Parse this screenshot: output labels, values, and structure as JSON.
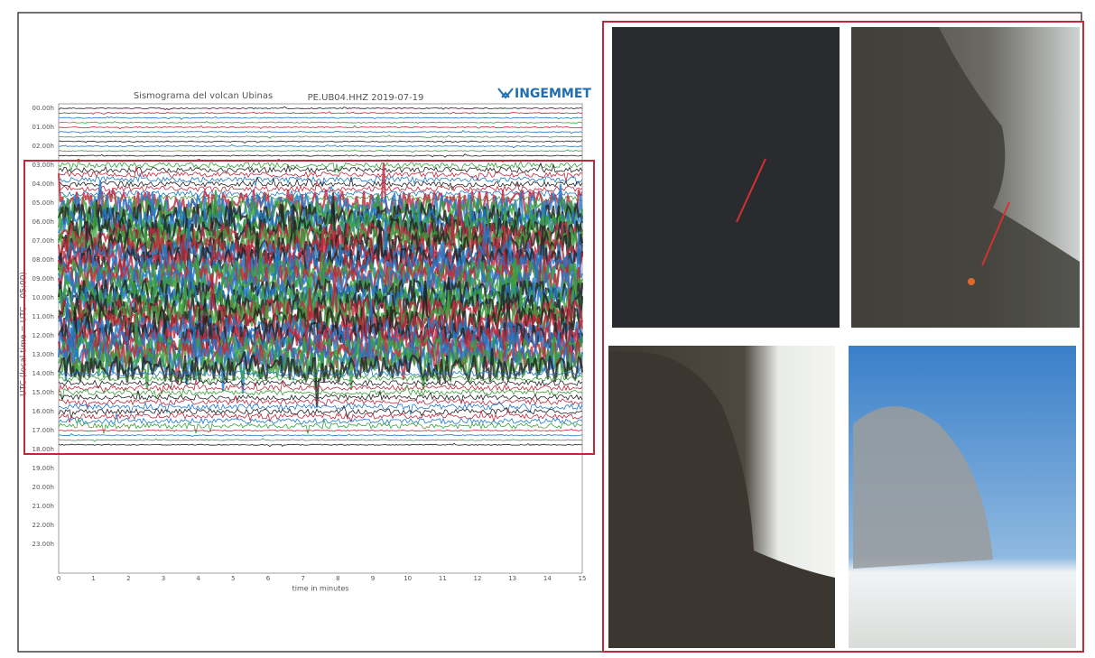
{
  "seismogram": {
    "title": "Sismograma del volcan Ubinas",
    "station": "PE.UB04.HHZ 2019-07-19",
    "logo": "INGEMMET",
    "y_label": "UTC (local time = UTC - 05:00)",
    "x_label": "time in minutes",
    "hours": [
      "00.00h",
      "01.00h",
      "02.00h",
      "03.00h",
      "04.00h",
      "05.00h",
      "06.00h",
      "07.00h",
      "08.00h",
      "09.00h",
      "10.00h",
      "11.00h",
      "12.00h",
      "13.00h",
      "14.00h",
      "15.00h",
      "16.00h",
      "17.00h",
      "18.00h",
      "19.00h",
      "20.00h",
      "21.00h",
      "22.00h",
      "23.00h"
    ],
    "minutes": [
      "0",
      "1",
      "2",
      "3",
      "4",
      "5",
      "6",
      "7",
      "8",
      "9",
      "10",
      "11",
      "12",
      "13",
      "14",
      "15"
    ]
  }
}
